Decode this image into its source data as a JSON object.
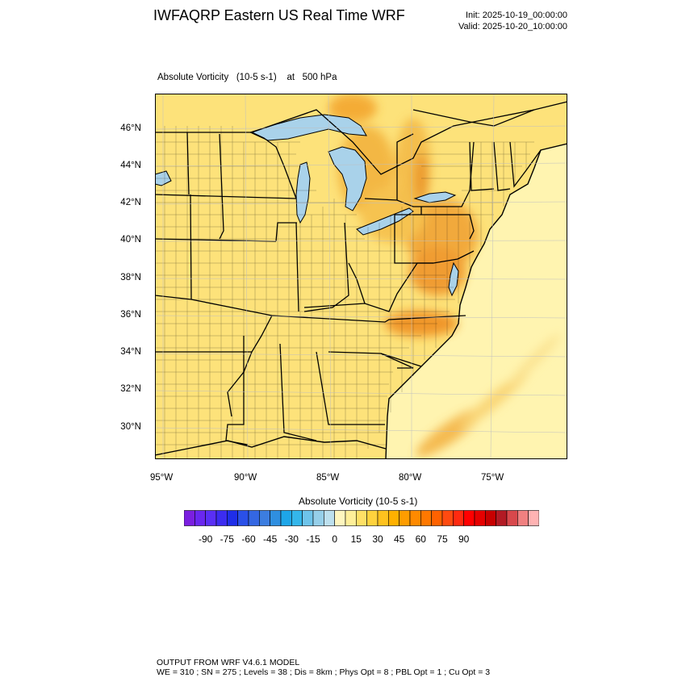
{
  "title": "IWFAQRP Eastern US Real Time WRF",
  "init_label": "Init: 2025-10-19_00:00:00",
  "valid_label": "Valid: 2025-10-20_10:00:00",
  "field": {
    "name": "Absolute Vorticity",
    "units": "(10-5 s-1)",
    "level_prefix": "at",
    "level": "500 hPa"
  },
  "map": {
    "lat_labels": [
      "46°N",
      "44°N",
      "42°N",
      "40°N",
      "38°N",
      "36°N",
      "34°N",
      "32°N",
      "30°N"
    ],
    "lon_labels": [
      "95°W",
      "90°W",
      "85°W",
      "80°W",
      "75°W"
    ],
    "land_color": "#fde27a",
    "ocean_color": "#fff4b0",
    "water_color": "#a9d2ea",
    "max_color": "#e8820c"
  },
  "colorbar": {
    "title": "Absolute Vorticity  (10-5 s-1)",
    "colors": [
      "#7b1fe0",
      "#6a27ef",
      "#5a2ff5",
      "#3c2cf0",
      "#1f2ee8",
      "#2a50e8",
      "#3467e2",
      "#3c7de0",
      "#2f8fe0",
      "#1ea6e8",
      "#34b6ea",
      "#6ec4ea",
      "#96cfe9",
      "#bde0ee",
      "#fff6bf",
      "#ffef99",
      "#ffe066",
      "#ffd23d",
      "#ffc21e",
      "#ffb000",
      "#ff9d00",
      "#ff8a00",
      "#ff7800",
      "#ff6200",
      "#ff4a10",
      "#ff2a10",
      "#ff0000",
      "#e60000",
      "#c80000",
      "#b21a24",
      "#d8484c",
      "#f08080",
      "#ffb3b3"
    ],
    "ticks": [
      "-90",
      "-75",
      "-60",
      "-45",
      "-30",
      "-15",
      "0",
      "15",
      "30",
      "45",
      "60",
      "75",
      "90"
    ]
  },
  "footer": {
    "line1": "OUTPUT FROM WRF V4.6.1 MODEL",
    "line2": "WE = 310 ; SN = 275 ; Levels = 38 ; Dis = 8km ; Phys Opt = 8 ; PBL Opt = 1 ; Cu Opt = 3"
  }
}
